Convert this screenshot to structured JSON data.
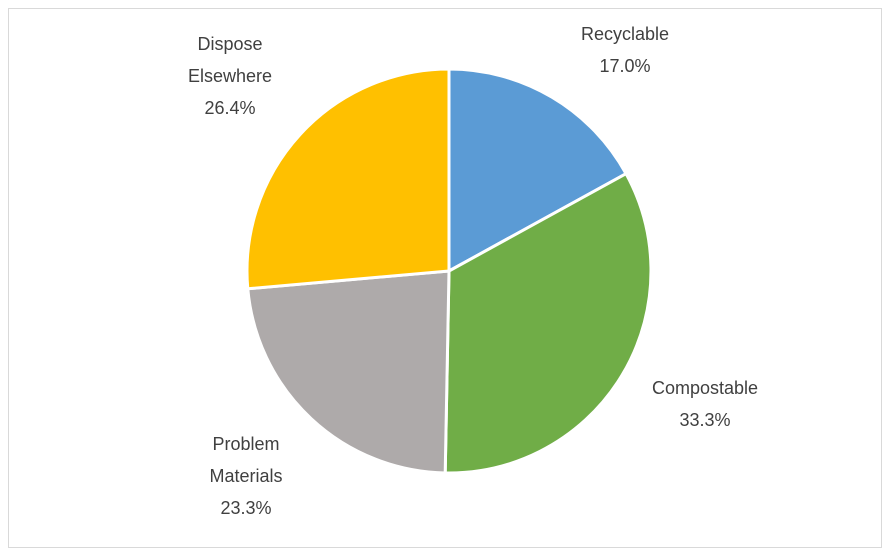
{
  "chart_data": {
    "type": "pie",
    "title": "",
    "start_angle_deg": 0,
    "direction": "clockwise",
    "legend": "none",
    "slices": [
      {
        "label_lines": [
          "Recyclable"
        ],
        "value": 17.0,
        "value_label": "17.0%",
        "color": "#5b9bd5"
      },
      {
        "label_lines": [
          "Compostable"
        ],
        "value": 33.3,
        "value_label": "33.3%",
        "color": "#70ad47"
      },
      {
        "label_lines": [
          "Problem",
          "Materials"
        ],
        "value": 23.3,
        "value_label": "23.3%",
        "color": "#aeaaaa"
      },
      {
        "label_lines": [
          "Dispose",
          "Elsewhere"
        ],
        "value": 26.4,
        "value_label": "26.4%",
        "color": "#ffc000"
      }
    ]
  }
}
